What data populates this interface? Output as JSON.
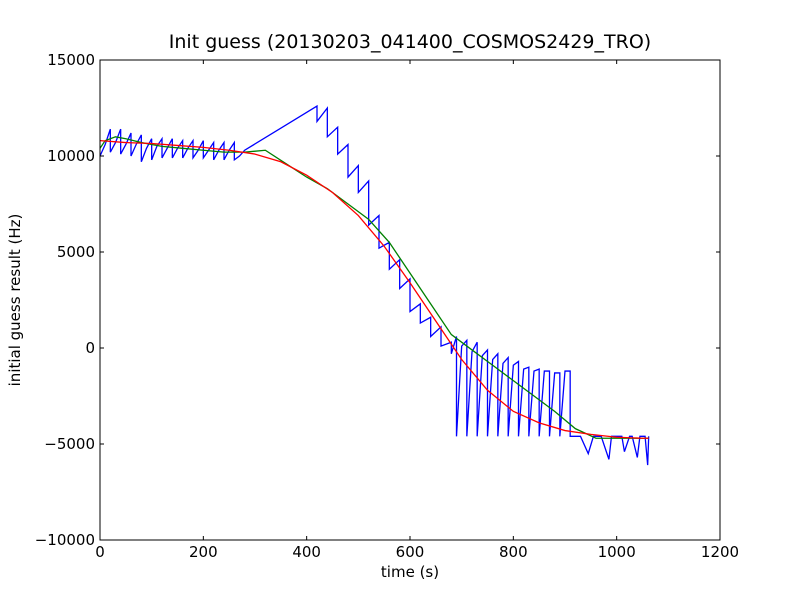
{
  "chart_data": {
    "type": "line",
    "title": "Init guess (20130203_041400_COSMOS2429_TRO)",
    "xlabel": "time (s)",
    "ylabel": "initial guess result (Hz)",
    "xlim": [
      0,
      1200
    ],
    "ylim": [
      -10000,
      15000
    ],
    "xticks": [
      "0",
      "200",
      "400",
      "600",
      "800",
      "1000",
      "1200"
    ],
    "yticks": [
      "−10000",
      "−5000",
      "0",
      "5000",
      "10000",
      "15000"
    ],
    "xtick_values": [
      0,
      200,
      400,
      600,
      800,
      1000,
      1200
    ],
    "ytick_values": [
      -10000,
      -5000,
      0,
      5000,
      10000,
      15000
    ],
    "grid": false,
    "legend": "none",
    "series": [
      {
        "color": "#0000ff",
        "x": [
          0,
          10,
          20,
          20,
          30,
          40,
          40,
          50,
          60,
          60,
          70,
          80,
          80,
          90,
          100,
          100,
          110,
          120,
          120,
          130,
          140,
          140,
          150,
          160,
          160,
          170,
          180,
          180,
          190,
          200,
          200,
          210,
          220,
          220,
          230,
          240,
          240,
          250,
          260,
          260,
          270,
          280,
          420,
          420,
          440,
          440,
          460,
          460,
          480,
          480,
          500,
          500,
          520,
          520,
          540,
          540,
          560,
          560,
          580,
          580,
          600,
          600,
          620,
          620,
          640,
          640,
          660,
          660,
          680,
          680,
          690,
          690,
          700,
          710,
          710,
          720,
          730,
          730,
          740,
          750,
          750,
          760,
          770,
          770,
          780,
          790,
          790,
          800,
          810,
          810,
          820,
          830,
          830,
          840,
          850,
          850,
          860,
          870,
          870,
          880,
          890,
          890,
          900,
          910,
          910,
          915,
          920,
          930,
          945,
          955,
          960,
          970,
          985,
          990,
          1000,
          1010,
          1015,
          1025,
          1030,
          1040,
          1045,
          1055,
          1060,
          1062
        ],
        "y": [
          10000,
          10600,
          11400,
          10200,
          10700,
          11400,
          10100,
          10600,
          11200,
          10000,
          10600,
          11100,
          9700,
          10400,
          10900,
          9800,
          10500,
          10900,
          9900,
          10400,
          10900,
          9900,
          10400,
          10800,
          9900,
          10400,
          10800,
          9900,
          10300,
          10800,
          9900,
          10300,
          10700,
          9800,
          10300,
          10700,
          9800,
          10300,
          10700,
          9800,
          10000,
          10300,
          12600,
          11800,
          12500,
          11000,
          11500,
          10100,
          10600,
          8900,
          9500,
          8100,
          8700,
          6400,
          6900,
          5200,
          5500,
          4100,
          4600,
          3100,
          3600,
          1900,
          2300,
          1300,
          1600,
          600,
          1100,
          100,
          300,
          -300,
          600,
          -4600,
          100,
          400,
          -4600,
          -200,
          300,
          -4600,
          -400,
          -100,
          -4600,
          -600,
          -300,
          -4600,
          -800,
          -500,
          -4600,
          -900,
          -700,
          -4600,
          -1100,
          -1000,
          -4600,
          -1200,
          -1100,
          -4600,
          -1200,
          -1200,
          -4600,
          -1300,
          -1300,
          -4600,
          -1200,
          -1200,
          -4600,
          -4600,
          -4600,
          -4600,
          -5500,
          -4600,
          -4600,
          -4600,
          -5800,
          -4600,
          -4600,
          -4600,
          -5400,
          -4600,
          -4600,
          -5700,
          -4600,
          -4600,
          -6100,
          -4600
        ]
      },
      {
        "color": "#008000",
        "x": [
          0,
          10,
          30,
          50,
          80,
          120,
          160,
          200,
          240,
          280,
          320,
          360,
          400,
          440,
          480,
          520,
          560,
          600,
          640,
          680,
          720,
          760,
          800,
          840,
          880,
          920,
          960,
          1000,
          1040,
          1062
        ],
        "y": [
          10400,
          10800,
          11000,
          10900,
          10700,
          10500,
          10400,
          10300,
          10200,
          10200,
          10300,
          9600,
          8900,
          8300,
          7500,
          6700,
          5500,
          3900,
          2300,
          700,
          -100,
          -900,
          -1700,
          -2500,
          -3300,
          -4200,
          -4700,
          -4700,
          -4700,
          -4700
        ]
      },
      {
        "color": "#ff0000",
        "x": [
          0,
          50,
          100,
          150,
          200,
          250,
          300,
          350,
          400,
          450,
          500,
          550,
          600,
          650,
          700,
          750,
          800,
          850,
          900,
          950,
          1000,
          1050,
          1062
        ],
        "y": [
          10800,
          10700,
          10650,
          10550,
          10450,
          10300,
          10100,
          9700,
          9000,
          8100,
          6900,
          5300,
          3400,
          1400,
          -600,
          -2200,
          -3300,
          -3900,
          -4300,
          -4500,
          -4650,
          -4700,
          -4700
        ]
      }
    ]
  }
}
